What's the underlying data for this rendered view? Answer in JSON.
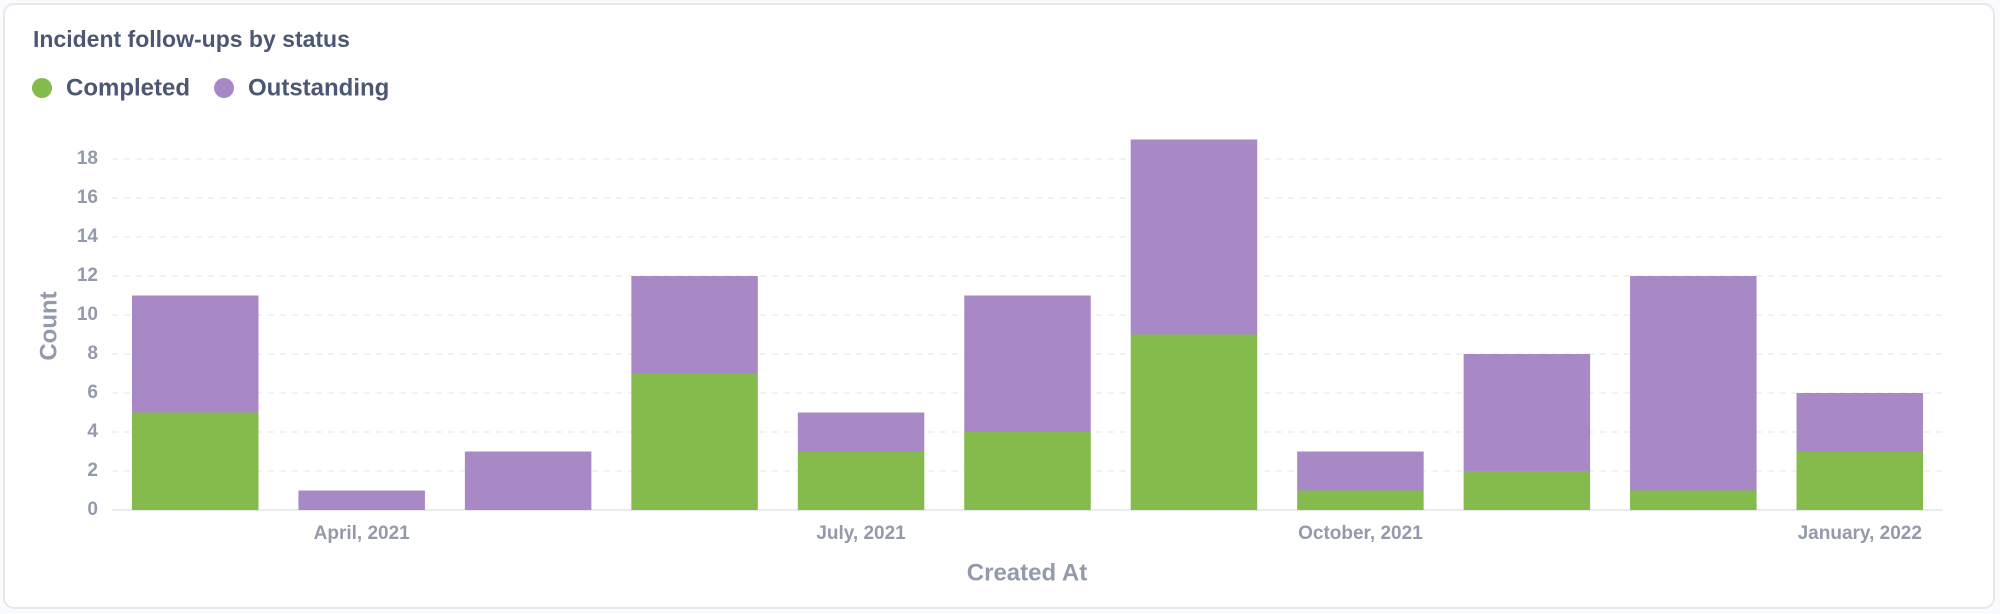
{
  "chart_data": {
    "type": "stacked_bar",
    "title": "Incident follow-ups by status",
    "categories": [
      null,
      "April, 2021",
      null,
      null,
      "July, 2021",
      null,
      null,
      "October, 2021",
      null,
      null,
      "January, 2022"
    ],
    "series": [
      {
        "name": "Completed",
        "color": "#84bb4c",
        "values": [
          5,
          0,
          0,
          7,
          3,
          4,
          9,
          1,
          2,
          1,
          3
        ]
      },
      {
        "name": "Outstanding",
        "color": "#a989c5",
        "values": [
          6,
          1,
          3,
          5,
          2,
          7,
          10,
          2,
          6,
          11,
          3
        ]
      }
    ],
    "xlabel": "Created At",
    "ylabel": "Count",
    "ylim": [
      0,
      19
    ],
    "yticks": [
      0,
      2,
      4,
      6,
      8,
      10,
      12,
      14,
      16,
      18
    ],
    "grid": true,
    "legend": "top-left"
  }
}
